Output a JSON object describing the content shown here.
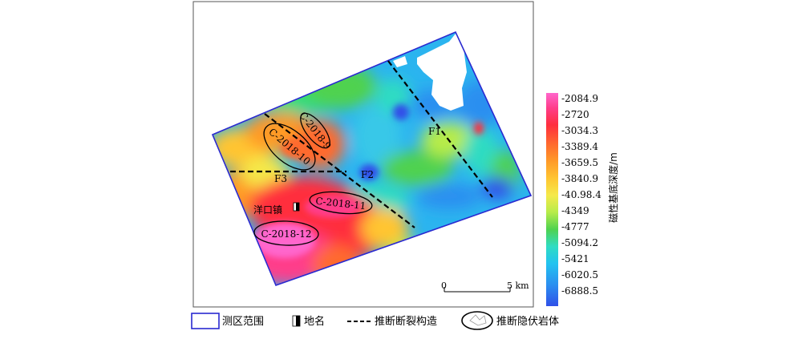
{
  "colorbar": {
    "title": "磁性基底深度/m",
    "labels": [
      "-2084.9",
      "-2720",
      "-3034.3",
      "-3389.4",
      "-3659.5",
      "-3840.9",
      "-40.98.4",
      "-4349",
      "-4777",
      "-5094.2",
      "-5421",
      "-6020.5",
      "-6888.5"
    ],
    "colors": [
      "#ff66cc",
      "#ff3d8a",
      "#ff2e3e",
      "#ff6a2e",
      "#ff9a28",
      "#ffc531",
      "#f5e94a",
      "#b7ec4a",
      "#4fd24f",
      "#2fdcc3",
      "#22c3f0",
      "#2b8ff0",
      "#3050e8"
    ]
  },
  "faults": [
    "F1",
    "F2",
    "F3"
  ],
  "bodies": [
    "C-2018-9",
    "C-2018-10",
    "C-2018-11",
    "C-2018-12"
  ],
  "town": "洋口镇",
  "scale": {
    "start": "0",
    "end": "5 km"
  },
  "legend": {
    "survey_area": "测区范围",
    "place_name": "地名",
    "fault": "推断断裂构造",
    "intrusion": "推断隐伏岩体"
  }
}
